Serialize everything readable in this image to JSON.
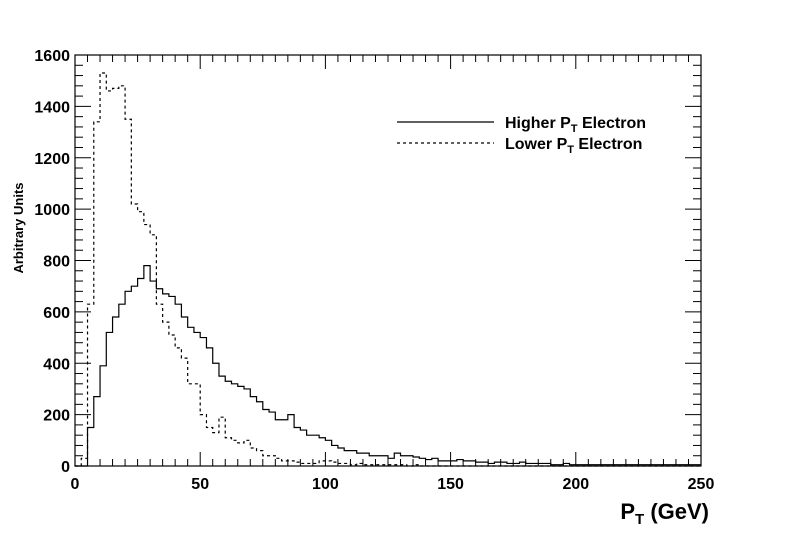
{
  "chart_data": {
    "type": "line",
    "style": "step-histogram",
    "xlabel": {
      "main": "P",
      "sub": "T",
      "rest": " (GeV)"
    },
    "ylabel": "Arbitrary Units",
    "xlim": [
      0,
      250
    ],
    "ylim": [
      0,
      1600
    ],
    "xticks": [
      0,
      50,
      100,
      150,
      200,
      250
    ],
    "yticks": [
      0,
      200,
      400,
      600,
      800,
      1000,
      1200,
      1400,
      1600
    ],
    "grid": false,
    "legend_position": "top-right",
    "bin_width": 2.5,
    "series": [
      {
        "name": "Higher P_T Electron",
        "legend": {
          "main": "Higher P",
          "sub": "T",
          "rest": " Electron"
        },
        "line_style": "solid",
        "color": "#000000",
        "x_start": 0,
        "values": [
          0,
          0,
          150,
          270,
          390,
          520,
          580,
          630,
          680,
          700,
          730,
          780,
          720,
          690,
          670,
          660,
          630,
          580,
          540,
          520,
          500,
          460,
          400,
          350,
          330,
          320,
          310,
          300,
          270,
          250,
          220,
          210,
          180,
          180,
          200,
          150,
          140,
          120,
          120,
          110,
          100,
          80,
          70,
          60,
          60,
          50,
          50,
          40,
          40,
          40,
          30,
          50,
          40,
          40,
          35,
          30,
          25,
          30,
          20,
          20,
          20,
          25,
          20,
          20,
          15,
          15,
          10,
          15,
          15,
          10,
          10,
          15,
          10,
          10,
          10,
          10,
          5,
          5,
          10,
          5,
          5,
          5,
          5,
          5,
          5,
          5,
          5,
          5,
          5,
          5,
          5,
          5,
          5,
          5,
          5,
          5,
          5,
          5,
          5,
          5
        ]
      },
      {
        "name": "Lower P_T Electron",
        "legend": {
          "main": "Lower P",
          "sub": "T",
          "rest": " Electron"
        },
        "line_style": "dashed",
        "color": "#000000",
        "x_start": 0,
        "values": [
          0,
          30,
          630,
          1340,
          1530,
          1460,
          1470,
          1480,
          1350,
          1020,
          990,
          940,
          900,
          630,
          560,
          510,
          460,
          420,
          320,
          320,
          200,
          150,
          130,
          190,
          110,
          100,
          90,
          100,
          70,
          60,
          40,
          40,
          30,
          20,
          20,
          15,
          10,
          10,
          10,
          20,
          20,
          15,
          10,
          10,
          5,
          10,
          5,
          5,
          5,
          5,
          5,
          5,
          5,
          0,
          5,
          0,
          0,
          0,
          0,
          0,
          0,
          0,
          0,
          0,
          0,
          0,
          0,
          0,
          0,
          0,
          0,
          0,
          0,
          0,
          0,
          0,
          0,
          0,
          0,
          0,
          0,
          0,
          0,
          0,
          0,
          0,
          0,
          0,
          0,
          0,
          0,
          0,
          0,
          0,
          0,
          0,
          0,
          0,
          0,
          0
        ]
      }
    ]
  }
}
